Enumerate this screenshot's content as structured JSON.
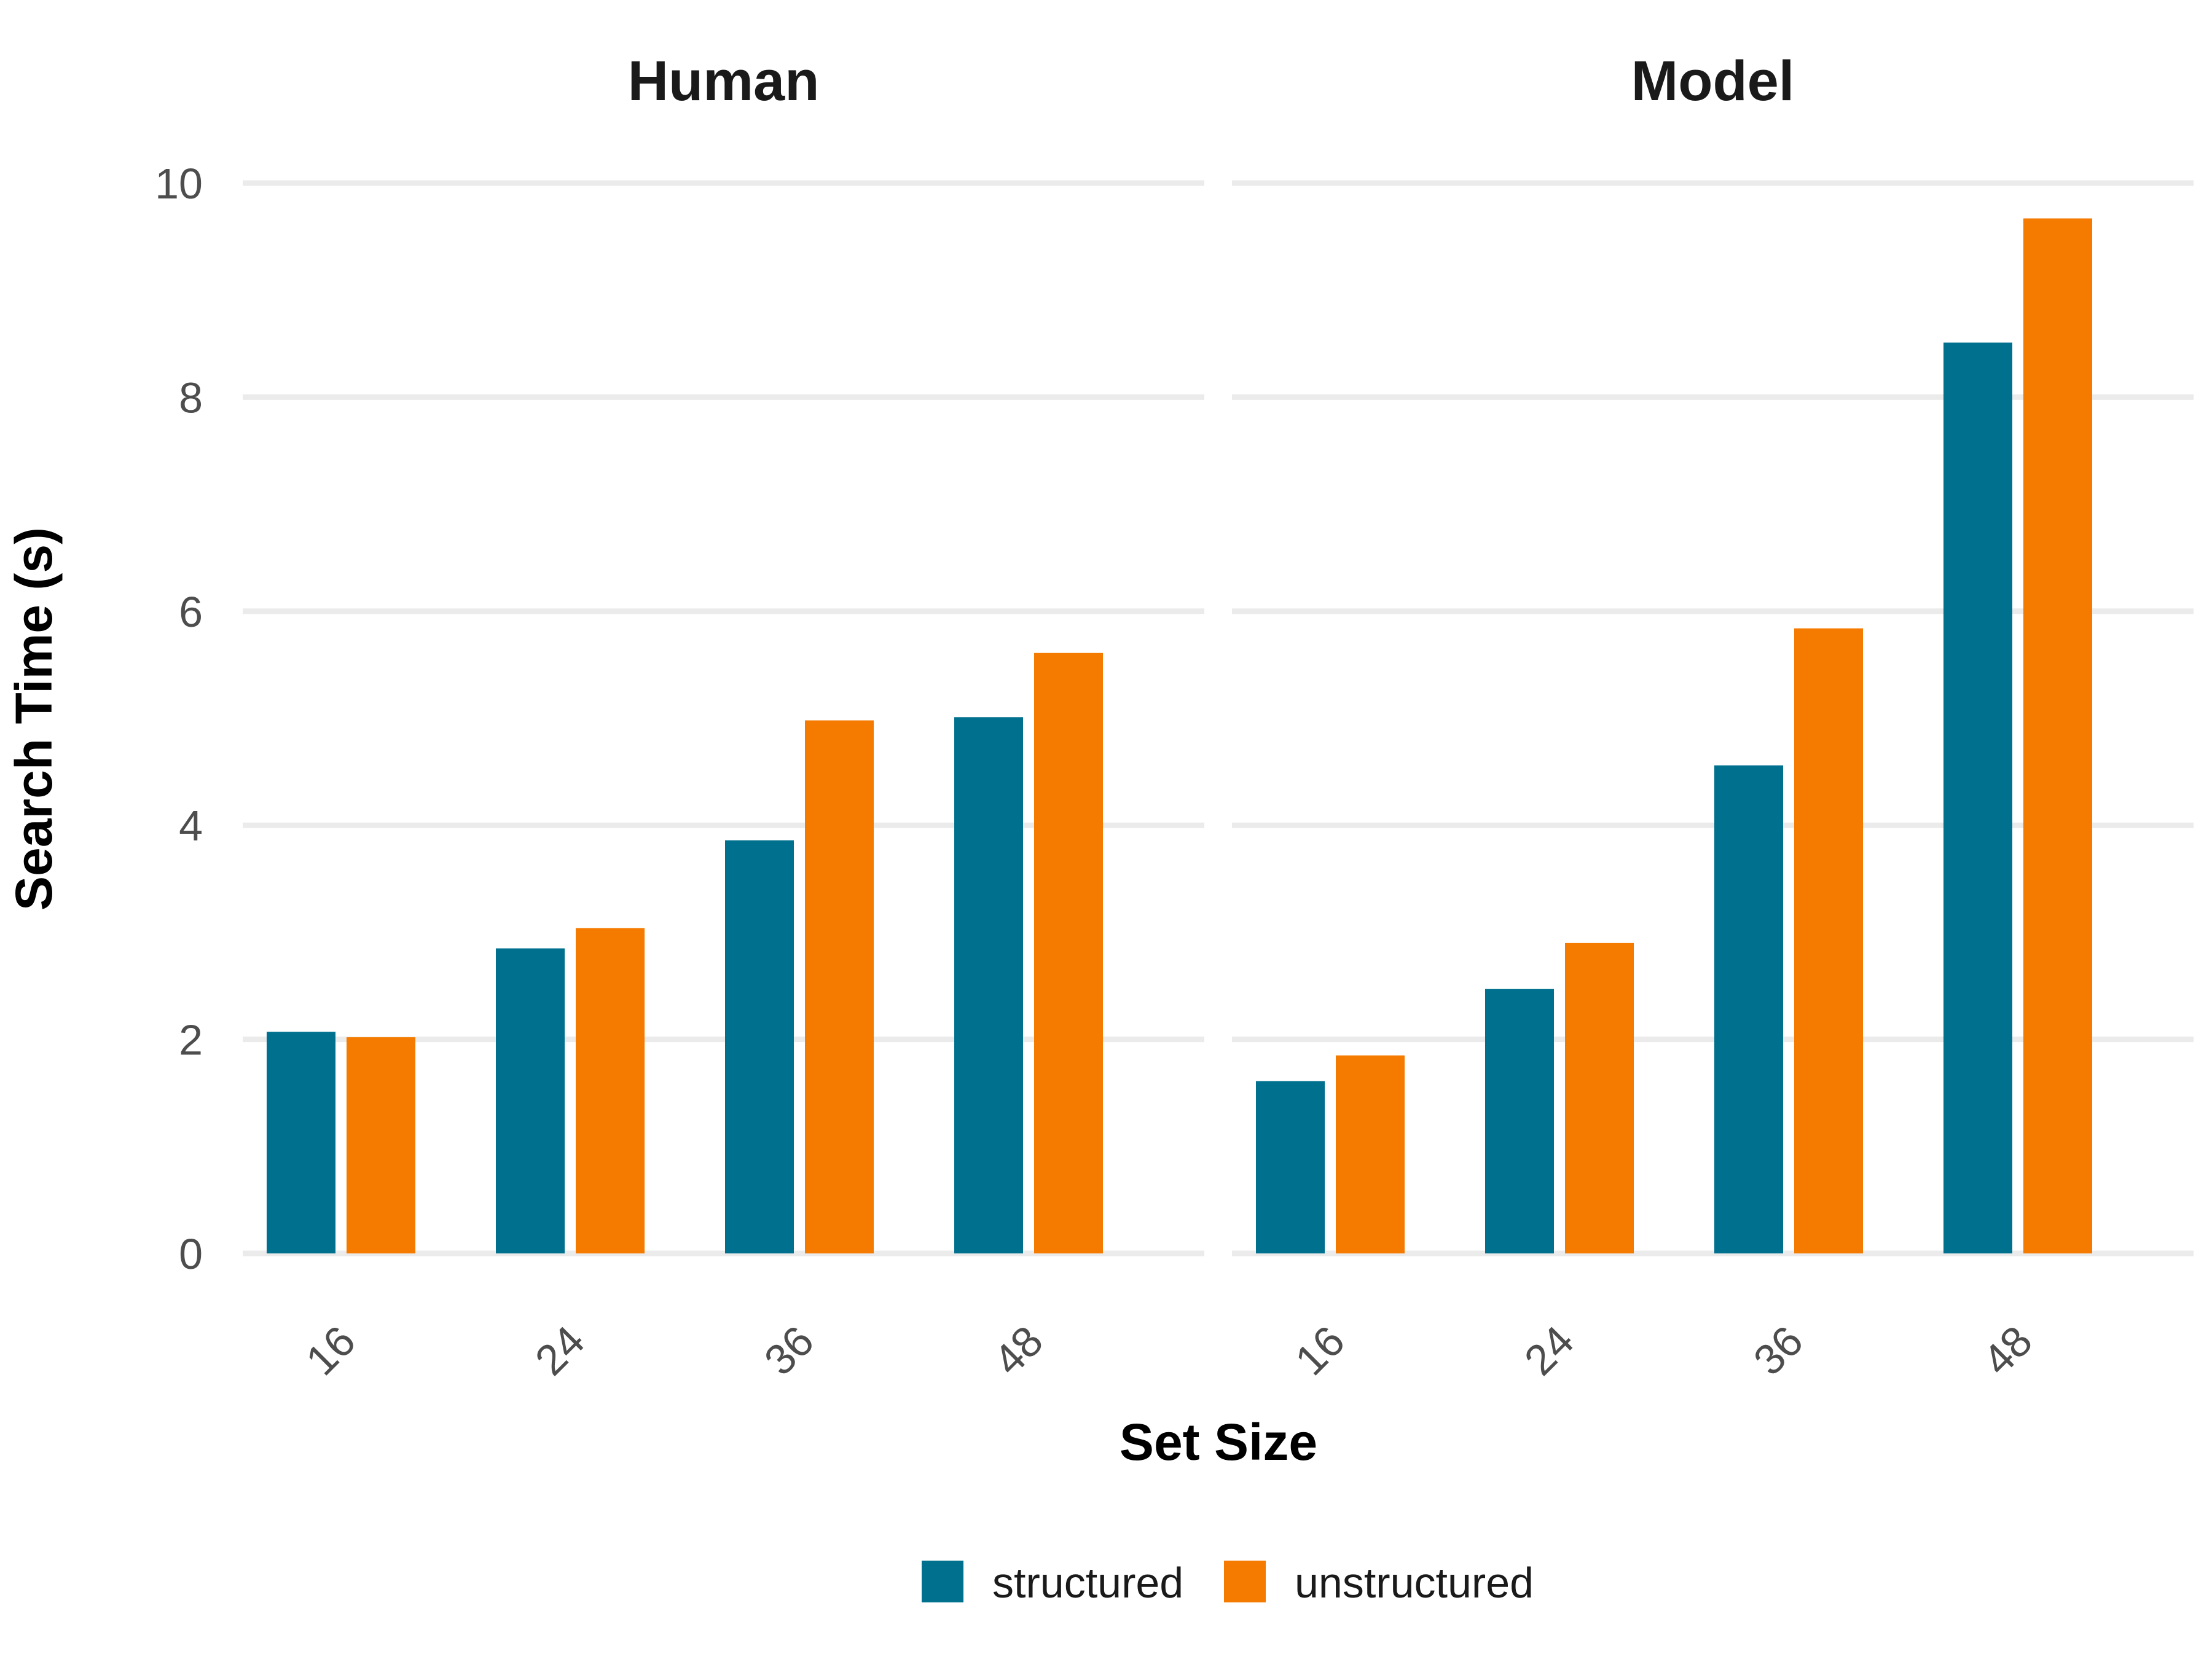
{
  "chart_data": {
    "type": "bar",
    "xlabel": "Set Size",
    "ylabel": "Search Time (s)",
    "ylim": [
      0,
      10
    ],
    "yticks": [
      0,
      2,
      4,
      6,
      8,
      10
    ],
    "grid": true,
    "legend_position": "bottom",
    "categories": [
      "16",
      "24",
      "36",
      "48"
    ],
    "colors": {
      "structured": "#00708f",
      "unstructured": "#f47a00"
    },
    "panels": [
      {
        "title": "Human",
        "series": [
          {
            "name": "structured",
            "values": [
              2.07,
              2.85,
              3.86,
              5.01
            ]
          },
          {
            "name": "unstructured",
            "values": [
              2.02,
              3.04,
              4.98,
              5.61
            ]
          }
        ]
      },
      {
        "title": "Model",
        "series": [
          {
            "name": "structured",
            "values": [
              1.61,
              2.47,
              4.56,
              8.51
            ]
          },
          {
            "name": "unstructured",
            "values": [
              1.85,
              2.9,
              5.84,
              9.67
            ]
          }
        ]
      }
    ]
  }
}
